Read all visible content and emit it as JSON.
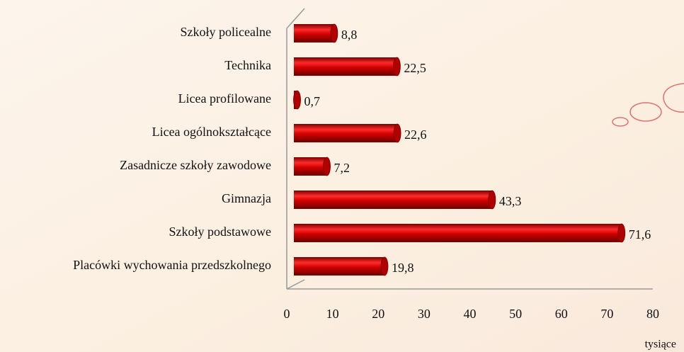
{
  "chart_data": {
    "type": "bar",
    "orientation": "horizontal",
    "categories": [
      "Szkoły policealne",
      "Technika",
      "Licea profilowane",
      "Licea ogólnokształcące",
      "Zasadnicze szkoły zawodowe",
      "Gimnazja",
      "Szkoły podstawowe",
      "Placówki wychowania przedszkolnego"
    ],
    "values": [
      8.8,
      22.5,
      0.7,
      22.6,
      7.2,
      43.3,
      71.6,
      19.8
    ],
    "value_labels": [
      "8,8",
      "22,5",
      "0,7",
      "22,6",
      "7,2",
      "43,3",
      "71,6",
      "19,8"
    ],
    "color": "#c00000",
    "xlim": [
      0,
      80
    ],
    "xticks": [
      0,
      10,
      20,
      30,
      40,
      50,
      60,
      70,
      80
    ],
    "x_axis_label": "tysiące",
    "grid": false
  }
}
